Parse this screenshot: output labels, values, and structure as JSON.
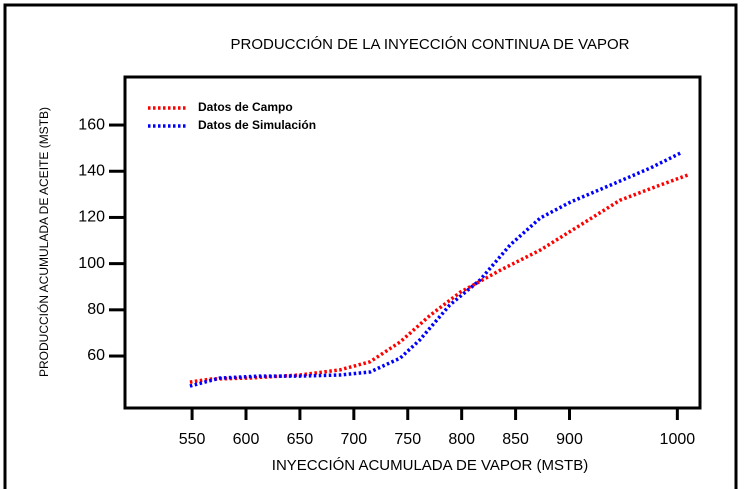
{
  "chart_data": {
    "type": "line",
    "title": "PRODUCCIÓN DE LA INYECCIÓN CONTINUA DE VAPOR",
    "x_label": "INYECCIÓN ACUMULADA DE VAPOR (MSTB)",
    "y_label": "PRODUCCIÓN ACUMULADA DE ACEITE (MSTB)",
    "series": [
      {
        "name": "Datos de Campo",
        "color": "#ff0000",
        "x": [
          548,
          567,
          604,
          650,
          687,
          715,
          743,
          771,
          799,
          836,
          873,
          910,
          947,
          984,
          1010
        ],
        "values": [
          48.7,
          50.0,
          50.5,
          51.8,
          54.0,
          57.5,
          66.1,
          77.7,
          87.7,
          97.2,
          105.9,
          116.7,
          127.5,
          134.0,
          138.4
        ]
      },
      {
        "name": "Datos de Simulación",
        "color": "#0000ff",
        "x": [
          548,
          576,
          613,
          650,
          687,
          715,
          743,
          761,
          789,
          817,
          845,
          873,
          901,
          938,
          975,
          1003
        ],
        "values": [
          47.0,
          50.5,
          51.3,
          51.3,
          51.8,
          53.1,
          59.1,
          66.9,
          82.1,
          92.9,
          108.1,
          119.8,
          126.7,
          134.0,
          141.4,
          147.9
        ]
      }
    ],
    "xlim": [
      487.8,
      1021
    ],
    "ylim": [
      37.5,
      180.8
    ],
    "xticks": [
      550,
      600,
      650,
      700,
      750,
      800,
      850,
      900,
      1000
    ],
    "yticks": [
      60,
      80,
      100,
      120,
      140,
      160
    ],
    "legend": "upper left"
  }
}
